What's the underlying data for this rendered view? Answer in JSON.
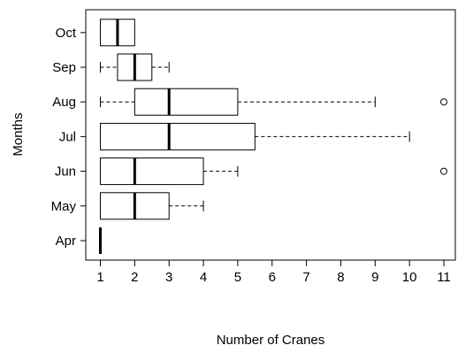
{
  "chart_data": {
    "type": "boxplot",
    "orientation": "horizontal",
    "xlabel": "Number of Cranes",
    "ylabel": "Months",
    "xlim": [
      1,
      11
    ],
    "x_ticks": [
      1,
      2,
      3,
      4,
      5,
      6,
      7,
      8,
      9,
      10,
      11
    ],
    "grid": false,
    "categories": [
      "Apr",
      "May",
      "Jun",
      "Jul",
      "Aug",
      "Sep",
      "Oct"
    ],
    "boxes": [
      {
        "category": "Apr",
        "min": 1,
        "q1": 1,
        "median": 1,
        "q3": 1,
        "max": 1,
        "outliers": []
      },
      {
        "category": "May",
        "min": 1,
        "q1": 1,
        "median": 2,
        "q3": 3,
        "max": 4,
        "outliers": []
      },
      {
        "category": "Jun",
        "min": 1,
        "q1": 1,
        "median": 2,
        "q3": 4,
        "max": 5,
        "outliers": [
          11
        ]
      },
      {
        "category": "Jul",
        "min": 1,
        "q1": 1,
        "median": 3,
        "q3": 5.5,
        "max": 10,
        "outliers": []
      },
      {
        "category": "Aug",
        "min": 1,
        "q1": 2,
        "median": 3,
        "q3": 5,
        "max": 9,
        "outliers": [
          11
        ]
      },
      {
        "category": "Sep",
        "min": 1,
        "q1": 1.5,
        "median": 2,
        "q3": 2.5,
        "max": 3,
        "outliers": []
      },
      {
        "category": "Oct",
        "min": 1,
        "q1": 1,
        "median": 1.5,
        "q3": 2,
        "max": 2,
        "outliers": []
      }
    ]
  }
}
